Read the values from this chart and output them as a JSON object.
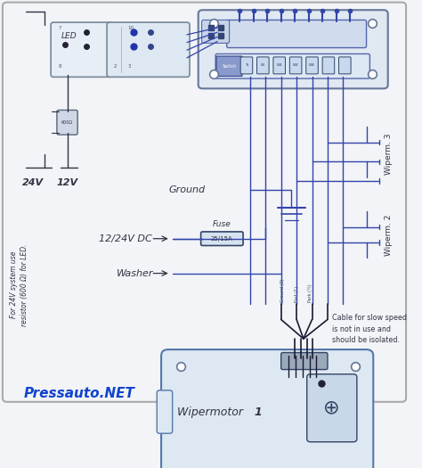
{
  "bg_color": "#f2f4f7",
  "wire_color": "#3344aa",
  "dark_wire": "#1a1a33",
  "comp_fill": "#e2eaf2",
  "comp_stroke": "#667799",
  "text_color": "#333344",
  "blue_text": "#1144cc",
  "title": "Pressauto.NET",
  "label_led": "LED",
  "label_24v": "24V",
  "label_12v": "12V",
  "label_ground": "Ground",
  "label_fuse": "Fuse",
  "label_fuse_val": "25/15A",
  "label_dc": "12/24V DC",
  "label_washer": "Washer",
  "label_wipermotor": "Wipermotor ",
  "label_wipermotor_bold": "1",
  "label_wiperm3": "Wiperm. 3",
  "label_wiperm2": "Wiperm. 2",
  "label_cable_note": "Cable for slow speed\nis not in use and\nshould be isolated.",
  "label_note_left": "For 24V system use\nresistor (600 Ω) for LED."
}
